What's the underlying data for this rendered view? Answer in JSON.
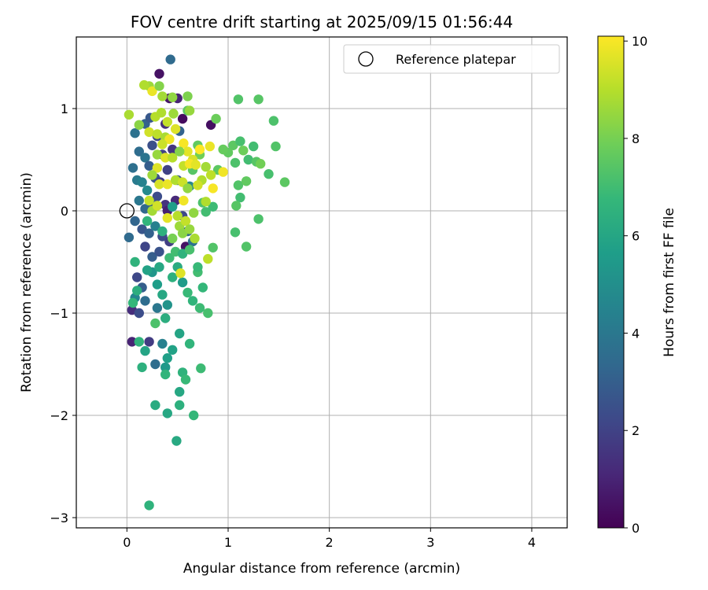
{
  "chart_data": {
    "type": "scatter",
    "title": "FOV centre drift starting at 2025/09/15 01:56:44",
    "xlabel": "Angular distance from reference (arcmin)",
    "ylabel": "Rotation from reference (arcmin)",
    "xlim": [
      -0.5,
      4.35
    ],
    "ylim": [
      -3.1,
      1.7
    ],
    "xticks": [
      0,
      1,
      2,
      3,
      4
    ],
    "yticks": [
      -3,
      -2,
      -1,
      0,
      1
    ],
    "grid": true,
    "legend": {
      "label": "Reference platepar",
      "placement": "top-right"
    },
    "reference_point": {
      "x": 0,
      "y": 0
    },
    "colorbar": {
      "label": "Hours from first FF file",
      "range": [
        0,
        10.1
      ],
      "ticks": [
        0,
        2,
        4,
        6,
        8,
        10
      ],
      "colormap": "viridis"
    },
    "points": [
      {
        "x": 0.43,
        "y": 1.48,
        "hours": 3.5
      },
      {
        "x": 0.32,
        "y": 1.34,
        "hours": 0.5
      },
      {
        "x": 0.55,
        "y": 0.9,
        "hours": 0.3
      },
      {
        "x": 0.83,
        "y": 0.84,
        "hours": 0.4
      },
      {
        "x": 0.5,
        "y": 1.1,
        "hours": 1.0
      },
      {
        "x": 0.42,
        "y": 1.1,
        "hours": 0.6
      },
      {
        "x": 0.08,
        "y": 0.76,
        "hours": 3.8
      },
      {
        "x": 0.18,
        "y": 0.85,
        "hours": 3.2
      },
      {
        "x": 0.23,
        "y": 0.91,
        "hours": 2.8
      },
      {
        "x": 0.12,
        "y": 0.58,
        "hours": 3.6
      },
      {
        "x": 0.18,
        "y": 0.52,
        "hours": 3.9
      },
      {
        "x": 0.25,
        "y": 0.64,
        "hours": 2.5
      },
      {
        "x": 0.3,
        "y": 0.73,
        "hours": 2.2
      },
      {
        "x": 0.22,
        "y": 0.44,
        "hours": 3.0
      },
      {
        "x": 0.35,
        "y": 0.55,
        "hours": 2.0
      },
      {
        "x": 0.06,
        "y": 0.42,
        "hours": 3.7
      },
      {
        "x": 0.1,
        "y": 0.3,
        "hours": 4.2
      },
      {
        "x": 0.15,
        "y": 0.28,
        "hours": 4.5
      },
      {
        "x": 0.2,
        "y": 0.2,
        "hours": 4.8
      },
      {
        "x": 0.28,
        "y": 0.32,
        "hours": 2.6
      },
      {
        "x": 0.33,
        "y": 0.28,
        "hours": 1.8
      },
      {
        "x": 0.12,
        "y": 0.1,
        "hours": 4.0
      },
      {
        "x": 0.18,
        "y": 0.02,
        "hours": 3.4
      },
      {
        "x": 0.25,
        "y": 0.08,
        "hours": 2.9
      },
      {
        "x": 0.3,
        "y": 0.14,
        "hours": 2.4
      },
      {
        "x": 0.38,
        "y": 0.06,
        "hours": 1.5
      },
      {
        "x": 0.08,
        "y": -0.1,
        "hours": 3.3
      },
      {
        "x": 0.02,
        "y": -0.26,
        "hours": 3.5
      },
      {
        "x": 0.15,
        "y": -0.18,
        "hours": 2.7
      },
      {
        "x": 0.22,
        "y": -0.22,
        "hours": 3.1
      },
      {
        "x": 0.28,
        "y": -0.15,
        "hours": 4.4
      },
      {
        "x": 0.35,
        "y": -0.25,
        "hours": 2.3
      },
      {
        "x": 0.42,
        "y": -0.3,
        "hours": 1.9
      },
      {
        "x": 0.18,
        "y": -0.35,
        "hours": 2.1
      },
      {
        "x": 0.25,
        "y": -0.45,
        "hours": 3.0
      },
      {
        "x": 0.32,
        "y": -0.4,
        "hours": 2.6
      },
      {
        "x": 0.4,
        "y": 0.0,
        "hours": 0.9
      },
      {
        "x": 0.48,
        "y": 0.1,
        "hours": 1.2
      },
      {
        "x": 0.55,
        "y": -0.05,
        "hours": 2.2
      },
      {
        "x": 0.6,
        "y": -0.2,
        "hours": 3.4
      },
      {
        "x": 0.58,
        "y": -0.35,
        "hours": 0.5
      },
      {
        "x": 0.65,
        "y": -0.3,
        "hours": 3.8
      },
      {
        "x": 0.1,
        "y": -0.65,
        "hours": 2.2
      },
      {
        "x": 0.15,
        "y": -0.75,
        "hours": 3.0
      },
      {
        "x": 0.18,
        "y": -0.88,
        "hours": 3.6
      },
      {
        "x": 0.08,
        "y": -0.85,
        "hours": 4.6
      },
      {
        "x": 0.05,
        "y": -0.97,
        "hours": 1.3
      },
      {
        "x": 0.12,
        "y": -1.0,
        "hours": 2.4
      },
      {
        "x": 0.05,
        "y": -1.28,
        "hours": 1.0
      },
      {
        "x": 0.22,
        "y": -1.28,
        "hours": 1.8
      },
      {
        "x": 0.28,
        "y": -1.5,
        "hours": 3.6
      },
      {
        "x": 0.35,
        "y": -1.3,
        "hours": 4.4
      },
      {
        "x": 0.3,
        "y": -0.95,
        "hours": 4.0
      },
      {
        "x": 0.4,
        "y": 0.4,
        "hours": 2.0
      },
      {
        "x": 0.45,
        "y": 0.6,
        "hours": 1.6
      },
      {
        "x": 0.5,
        "y": 0.3,
        "hours": 2.8
      },
      {
        "x": 0.62,
        "y": 0.24,
        "hours": 4.7
      },
      {
        "x": 0.52,
        "y": 0.78,
        "hours": 3.2
      },
      {
        "x": 0.38,
        "y": 0.85,
        "hours": 1.4
      },
      {
        "x": 0.25,
        "y": -0.6,
        "hours": 5.3
      },
      {
        "x": 0.3,
        "y": -0.72,
        "hours": 5.6
      },
      {
        "x": 0.35,
        "y": -0.82,
        "hours": 6.0
      },
      {
        "x": 0.2,
        "y": -0.58,
        "hours": 5.8
      },
      {
        "x": 0.4,
        "y": -0.92,
        "hours": 5.2
      },
      {
        "x": 0.45,
        "y": -0.65,
        "hours": 6.4
      },
      {
        "x": 0.5,
        "y": -0.55,
        "hours": 6.2
      },
      {
        "x": 0.55,
        "y": -0.7,
        "hours": 5.5
      },
      {
        "x": 0.6,
        "y": -0.8,
        "hours": 6.8
      },
      {
        "x": 0.65,
        "y": -0.88,
        "hours": 6.6
      },
      {
        "x": 0.7,
        "y": -0.6,
        "hours": 7.0
      },
      {
        "x": 0.72,
        "y": -0.95,
        "hours": 6.9
      },
      {
        "x": 0.8,
        "y": -1.0,
        "hours": 7.1
      },
      {
        "x": 0.75,
        "y": -0.75,
        "hours": 6.7
      },
      {
        "x": 0.85,
        "y": -0.36,
        "hours": 7.3
      },
      {
        "x": 0.08,
        "y": -0.5,
        "hours": 6.5
      },
      {
        "x": 0.1,
        "y": -0.78,
        "hours": 6.3
      },
      {
        "x": 0.06,
        "y": -0.9,
        "hours": 6.7
      },
      {
        "x": 0.12,
        "y": -1.28,
        "hours": 6.5
      },
      {
        "x": 0.18,
        "y": -1.37,
        "hours": 5.9
      },
      {
        "x": 0.15,
        "y": -1.53,
        "hours": 6.4
      },
      {
        "x": 0.38,
        "y": -1.53,
        "hours": 5.4
      },
      {
        "x": 0.4,
        "y": -1.44,
        "hours": 5.7
      },
      {
        "x": 0.45,
        "y": -1.36,
        "hours": 5.8
      },
      {
        "x": 0.52,
        "y": -1.2,
        "hours": 5.9
      },
      {
        "x": 0.62,
        "y": -1.3,
        "hours": 6.6
      },
      {
        "x": 0.55,
        "y": -1.58,
        "hours": 6.5
      },
      {
        "x": 0.58,
        "y": -1.65,
        "hours": 6.8
      },
      {
        "x": 0.52,
        "y": -1.77,
        "hours": 6.0
      },
      {
        "x": 0.73,
        "y": -1.54,
        "hours": 6.9
      },
      {
        "x": 0.28,
        "y": -1.9,
        "hours": 6.2
      },
      {
        "x": 0.4,
        "y": -1.98,
        "hours": 6.0
      },
      {
        "x": 0.52,
        "y": -1.9,
        "hours": 6.4
      },
      {
        "x": 0.66,
        "y": -2.0,
        "hours": 6.7
      },
      {
        "x": 0.49,
        "y": -2.25,
        "hours": 6.1
      },
      {
        "x": 0.22,
        "y": -2.88,
        "hours": 6.5
      },
      {
        "x": 0.38,
        "y": -1.6,
        "hours": 6.6
      },
      {
        "x": 0.28,
        "y": -1.1,
        "hours": 7.2
      },
      {
        "x": 0.38,
        "y": -1.05,
        "hours": 6.3
      },
      {
        "x": 0.32,
        "y": -0.55,
        "hours": 6.0
      },
      {
        "x": 0.42,
        "y": -0.46,
        "hours": 6.9
      },
      {
        "x": 0.48,
        "y": -0.4,
        "hours": 7.0
      },
      {
        "x": 0.55,
        "y": -0.42,
        "hours": 6.5
      },
      {
        "x": 0.62,
        "y": -0.38,
        "hours": 7.1
      },
      {
        "x": 0.7,
        "y": -0.55,
        "hours": 6.8
      },
      {
        "x": 0.78,
        "y": -0.01,
        "hours": 7.0
      },
      {
        "x": 0.85,
        "y": 0.04,
        "hours": 6.9
      },
      {
        "x": 0.75,
        "y": 0.08,
        "hours": 7.2
      },
      {
        "x": 0.2,
        "y": -0.1,
        "hours": 6.6
      },
      {
        "x": 0.35,
        "y": -0.2,
        "hours": 6.4
      },
      {
        "x": 0.45,
        "y": 0.04,
        "hours": 5.6
      },
      {
        "x": 1.1,
        "y": 1.09,
        "hours": 7.3
      },
      {
        "x": 1.3,
        "y": 1.09,
        "hours": 7.4
      },
      {
        "x": 1.45,
        "y": 0.88,
        "hours": 7.2
      },
      {
        "x": 1.05,
        "y": 0.64,
        "hours": 7.5
      },
      {
        "x": 1.12,
        "y": 0.68,
        "hours": 7.1
      },
      {
        "x": 1.25,
        "y": 0.63,
        "hours": 7.0
      },
      {
        "x": 1.47,
        "y": 0.63,
        "hours": 7.3
      },
      {
        "x": 1.0,
        "y": 0.57,
        "hours": 7.6
      },
      {
        "x": 1.15,
        "y": 0.59,
        "hours": 7.8
      },
      {
        "x": 1.07,
        "y": 0.47,
        "hours": 7.2
      },
      {
        "x": 1.2,
        "y": 0.5,
        "hours": 7.0
      },
      {
        "x": 1.28,
        "y": 0.48,
        "hours": 7.4
      },
      {
        "x": 1.32,
        "y": 0.46,
        "hours": 7.9
      },
      {
        "x": 1.4,
        "y": 0.36,
        "hours": 7.1
      },
      {
        "x": 1.56,
        "y": 0.28,
        "hours": 7.5
      },
      {
        "x": 1.1,
        "y": 0.25,
        "hours": 7.3
      },
      {
        "x": 1.18,
        "y": 0.29,
        "hours": 7.6
      },
      {
        "x": 1.12,
        "y": 0.13,
        "hours": 7.0
      },
      {
        "x": 1.08,
        "y": 0.05,
        "hours": 7.4
      },
      {
        "x": 1.3,
        "y": -0.08,
        "hours": 7.2
      },
      {
        "x": 1.07,
        "y": -0.21,
        "hours": 7.1
      },
      {
        "x": 1.18,
        "y": -0.35,
        "hours": 7.3
      },
      {
        "x": 0.95,
        "y": 0.6,
        "hours": 7.7
      },
      {
        "x": 0.9,
        "y": 0.4,
        "hours": 7.5
      },
      {
        "x": 0.88,
        "y": 0.9,
        "hours": 7.8
      },
      {
        "x": 0.7,
        "y": 0.64,
        "hours": 7.6
      },
      {
        "x": 0.72,
        "y": 0.55,
        "hours": 7.9
      },
      {
        "x": 0.65,
        "y": 0.4,
        "hours": 7.4
      },
      {
        "x": 0.6,
        "y": 0.98,
        "hours": 7.5
      },
      {
        "x": 0.22,
        "y": 1.22,
        "hours": 8.6
      },
      {
        "x": 0.17,
        "y": 1.23,
        "hours": 8.9
      },
      {
        "x": 0.25,
        "y": 1.17,
        "hours": 9.8
      },
      {
        "x": 0.32,
        "y": 1.22,
        "hours": 8.2
      },
      {
        "x": 0.35,
        "y": 1.12,
        "hours": 8.7
      },
      {
        "x": 0.45,
        "y": 1.11,
        "hours": 8.4
      },
      {
        "x": 0.6,
        "y": 1.12,
        "hours": 8.1
      },
      {
        "x": 0.62,
        "y": 0.98,
        "hours": 8.5
      },
      {
        "x": 0.02,
        "y": 0.94,
        "hours": 8.8
      },
      {
        "x": 0.12,
        "y": 0.84,
        "hours": 8.3
      },
      {
        "x": 0.22,
        "y": 0.77,
        "hours": 9.4
      },
      {
        "x": 0.28,
        "y": 0.92,
        "hours": 9.0
      },
      {
        "x": 0.34,
        "y": 0.96,
        "hours": 8.9
      },
      {
        "x": 0.4,
        "y": 0.87,
        "hours": 9.2
      },
      {
        "x": 0.46,
        "y": 0.95,
        "hours": 8.6
      },
      {
        "x": 0.48,
        "y": 0.8,
        "hours": 9.6
      },
      {
        "x": 0.3,
        "y": 0.75,
        "hours": 9.1
      },
      {
        "x": 0.38,
        "y": 0.72,
        "hours": 8.8
      },
      {
        "x": 0.42,
        "y": 0.7,
        "hours": 9.9
      },
      {
        "x": 0.56,
        "y": 0.66,
        "hours": 10.0
      },
      {
        "x": 0.6,
        "y": 0.58,
        "hours": 9.7
      },
      {
        "x": 0.65,
        "y": 0.5,
        "hours": 9.5
      },
      {
        "x": 0.72,
        "y": 0.6,
        "hours": 10.1
      },
      {
        "x": 0.82,
        "y": 0.63,
        "hours": 9.8
      },
      {
        "x": 0.35,
        "y": 0.65,
        "hours": 9.3
      },
      {
        "x": 0.3,
        "y": 0.55,
        "hours": 8.5
      },
      {
        "x": 0.38,
        "y": 0.52,
        "hours": 9.6
      },
      {
        "x": 0.45,
        "y": 0.52,
        "hours": 9.0
      },
      {
        "x": 0.52,
        "y": 0.58,
        "hours": 8.2
      },
      {
        "x": 0.56,
        "y": 0.44,
        "hours": 9.2
      },
      {
        "x": 0.62,
        "y": 0.46,
        "hours": 10.0
      },
      {
        "x": 0.68,
        "y": 0.45,
        "hours": 9.7
      },
      {
        "x": 0.78,
        "y": 0.43,
        "hours": 8.7
      },
      {
        "x": 0.95,
        "y": 0.38,
        "hours": 9.9
      },
      {
        "x": 0.83,
        "y": 0.35,
        "hours": 9.1
      },
      {
        "x": 0.74,
        "y": 0.3,
        "hours": 8.9
      },
      {
        "x": 0.7,
        "y": 0.25,
        "hours": 9.4
      },
      {
        "x": 0.85,
        "y": 0.22,
        "hours": 10.0
      },
      {
        "x": 0.3,
        "y": 0.42,
        "hours": 9.6
      },
      {
        "x": 0.25,
        "y": 0.35,
        "hours": 8.6
      },
      {
        "x": 0.32,
        "y": 0.26,
        "hours": 9.5
      },
      {
        "x": 0.4,
        "y": 0.26,
        "hours": 9.8
      },
      {
        "x": 0.48,
        "y": 0.3,
        "hours": 8.9
      },
      {
        "x": 0.55,
        "y": 0.28,
        "hours": 9.3
      },
      {
        "x": 0.6,
        "y": 0.22,
        "hours": 8.4
      },
      {
        "x": 0.22,
        "y": 0.1,
        "hours": 9.2
      },
      {
        "x": 0.25,
        "y": 0.0,
        "hours": 8.7
      },
      {
        "x": 0.3,
        "y": 0.05,
        "hours": 9.4
      },
      {
        "x": 0.4,
        "y": -0.07,
        "hours": 9.7
      },
      {
        "x": 0.5,
        "y": -0.05,
        "hours": 9.0
      },
      {
        "x": 0.52,
        "y": -0.15,
        "hours": 8.6
      },
      {
        "x": 0.58,
        "y": -0.1,
        "hours": 9.2
      },
      {
        "x": 0.55,
        "y": -0.22,
        "hours": 8.3
      },
      {
        "x": 0.62,
        "y": -0.18,
        "hours": 8.5
      },
      {
        "x": 0.67,
        "y": -0.27,
        "hours": 8.8
      },
      {
        "x": 0.45,
        "y": -0.27,
        "hours": 8.0
      },
      {
        "x": 0.56,
        "y": 0.1,
        "hours": 9.9
      },
      {
        "x": 0.78,
        "y": 0.09,
        "hours": 8.9
      },
      {
        "x": 0.53,
        "y": -0.61,
        "hours": 9.6
      },
      {
        "x": 0.8,
        "y": -0.47,
        "hours": 9.1
      },
      {
        "x": 0.66,
        "y": -0.02,
        "hours": 8.4
      }
    ]
  }
}
